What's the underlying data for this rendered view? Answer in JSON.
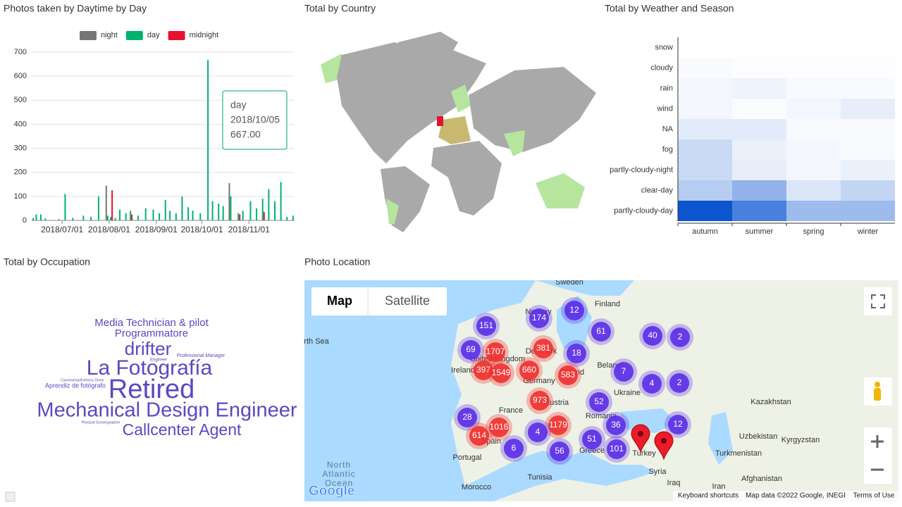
{
  "chart_data": [
    {
      "type": "bar",
      "title": "Photos taken by Daytime by Day",
      "x": [
        "2018/06/12",
        "2018/06/14",
        "2018/06/17",
        "2018/06/20",
        "2018/06/29",
        "2018/07/03",
        "2018/07/08",
        "2018/07/15",
        "2018/07/20",
        "2018/07/25",
        "2018/07/31",
        "2018/08/02",
        "2018/08/05",
        "2018/08/08",
        "2018/08/12",
        "2018/08/15",
        "2018/08/20",
        "2018/08/25",
        "2018/08/30",
        "2018/09/03",
        "2018/09/07",
        "2018/09/10",
        "2018/09/14",
        "2018/09/18",
        "2018/09/22",
        "2018/09/25",
        "2018/09/30",
        "2018/10/05",
        "2018/10/08",
        "2018/10/12",
        "2018/10/15",
        "2018/10/20",
        "2018/10/25",
        "2018/10/28",
        "2018/11/02",
        "2018/11/06",
        "2018/11/10",
        "2018/11/14",
        "2018/11/18",
        "2018/11/22",
        "2018/11/26",
        "2018/11/30"
      ],
      "series": [
        {
          "name": "night",
          "color": "#757575",
          "values": [
            null,
            null,
            null,
            null,
            null,
            null,
            null,
            null,
            null,
            null,
            145,
            null,
            null,
            null,
            null,
            null,
            null,
            null,
            null,
            null,
            null,
            null,
            null,
            null,
            null,
            null,
            null,
            null,
            null,
            null,
            null,
            155,
            null,
            null,
            null,
            null,
            null,
            null,
            null,
            null,
            null,
            null
          ]
        },
        {
          "name": "day",
          "color": "#00b26f",
          "values": [
            10,
            25,
            25,
            8,
            5,
            110,
            10,
            20,
            15,
            100,
            20,
            15,
            10,
            45,
            30,
            40,
            20,
            50,
            45,
            30,
            85,
            40,
            30,
            100,
            55,
            40,
            30,
            667,
            80,
            70,
            60,
            100,
            30,
            40,
            80,
            50,
            90,
            130,
            80,
            160,
            15,
            20
          ]
        },
        {
          "name": "midnight",
          "color": "#e8112d",
          "values": [
            null,
            null,
            null,
            null,
            null,
            null,
            null,
            null,
            null,
            null,
            null,
            125,
            null,
            null,
            null,
            25,
            null,
            null,
            null,
            null,
            null,
            null,
            null,
            null,
            null,
            null,
            null,
            null,
            null,
            null,
            null,
            null,
            25,
            null,
            null,
            null,
            35,
            null,
            null,
            null,
            null,
            null
          ]
        }
      ],
      "xlim": [
        "2018/06/11",
        "2018/12/01"
      ],
      "xticks": [
        "2018/07/01",
        "2018/08/01",
        "2018/09/01",
        "2018/10/01",
        "2018/11/01"
      ],
      "ylim": [
        0,
        700
      ],
      "yticks": [
        0,
        100,
        200,
        300,
        400,
        500,
        600,
        700
      ],
      "grid": true,
      "tooltip": {
        "name": "day",
        "x": "2018/10/05",
        "value": 667,
        "value_label": "667.00"
      }
    },
    {
      "type": "choropleth",
      "title": "Total by Country"
    },
    {
      "type": "heatmap",
      "title": "Total by Weather and Season",
      "x": [
        "autumn",
        "summer",
        "spring",
        "winter"
      ],
      "y": [
        "snow",
        "cloudy",
        "rain",
        "wind",
        "NA",
        "fog",
        "partly-cloudy-night",
        "clear-day",
        "partly-cloudy-day"
      ],
      "values": [
        [
          0,
          0,
          0,
          0
        ],
        [
          3,
          1,
          1,
          1
        ],
        [
          5,
          7,
          3,
          3
        ],
        [
          5,
          2,
          5,
          10
        ],
        [
          12,
          12,
          3,
          3
        ],
        [
          22,
          8,
          5,
          3
        ],
        [
          22,
          10,
          5,
          8
        ],
        [
          30,
          45,
          15,
          25
        ],
        [
          100,
          75,
          40,
          40
        ]
      ],
      "color": "#0b55cf"
    },
    {
      "type": "wordcloud",
      "title": "Total by Occupation",
      "color": "#5b48c2",
      "words": [
        {
          "text": "Media Technician & pilot",
          "weight": 15
        },
        {
          "text": "Programmatore",
          "weight": 15
        },
        {
          "text": "drifter",
          "weight": 26
        },
        {
          "text": "Professional Manager",
          "weight": 7
        },
        {
          "text": "Engineer",
          "weight": 6
        },
        {
          "text": "La Fotografía",
          "weight": 30
        },
        {
          "text": "Cameraman/Delivery Driver",
          "weight": 5
        },
        {
          "text": "Aprendiz de fotógrafo",
          "weight": 9
        },
        {
          "text": "Retired",
          "weight": 38
        },
        {
          "text": "Mechanical Design Engineer",
          "weight": 29
        },
        {
          "text": "Physical Oceanographer",
          "weight": 5
        },
        {
          "text": "Callcenter Agent",
          "weight": 23
        }
      ]
    },
    {
      "type": "map",
      "title": "Photo Location",
      "clusters": [
        {
          "value": 151,
          "color": "#5b2ee8"
        },
        {
          "value": 174,
          "color": "#5b2ee8"
        },
        {
          "value": 12,
          "color": "#5b2ee8"
        },
        {
          "value": 69,
          "color": "#5b2ee8"
        },
        {
          "value": 1707,
          "color": "#f0302f"
        },
        {
          "value": 381,
          "color": "#f0302f"
        },
        {
          "value": 18,
          "color": "#5b2ee8"
        },
        {
          "value": 61,
          "color": "#5b2ee8"
        },
        {
          "value": 40,
          "color": "#5b2ee8"
        },
        {
          "value": 2,
          "color": "#5b2ee8"
        },
        {
          "value": 397,
          "color": "#f0302f"
        },
        {
          "value": 1549,
          "color": "#f0302f"
        },
        {
          "value": 660,
          "color": "#f0302f"
        },
        {
          "value": 583,
          "color": "#f0302f"
        },
        {
          "value": 7,
          "color": "#5b2ee8"
        },
        {
          "value": 4,
          "color": "#5b2ee8"
        },
        {
          "value": 2,
          "color": "#5b2ee8"
        },
        {
          "value": 973,
          "color": "#f0302f"
        },
        {
          "value": 52,
          "color": "#5b2ee8"
        },
        {
          "value": 28,
          "color": "#5b2ee8"
        },
        {
          "value": 1016,
          "color": "#f0302f"
        },
        {
          "value": 1179,
          "color": "#f0302f"
        },
        {
          "value": 36,
          "color": "#5b2ee8"
        },
        {
          "value": 12,
          "color": "#5b2ee8"
        },
        {
          "value": 614,
          "color": "#f0302f"
        },
        {
          "value": 4,
          "color": "#5b2ee8"
        },
        {
          "value": 51,
          "color": "#5b2ee8"
        },
        {
          "value": 101,
          "color": "#5b2ee8"
        },
        {
          "value": 6,
          "color": "#5b2ee8"
        },
        {
          "value": 56,
          "color": "#5b2ee8"
        }
      ],
      "places": [
        "Sweden",
        "Finland",
        "Norway",
        "North Sea",
        "Ireland",
        "United Kingdom",
        "Denmark",
        "Poland",
        "Germany",
        "Belarus",
        "Ukraine",
        "Kazakhstan",
        "Austria",
        "France",
        "Romania",
        "Uzbekistan",
        "Kyrgyzstan",
        "Spain",
        "Portugal",
        "Greece",
        "Turkey",
        "Turkmenistan",
        "Syria",
        "Afghanistan",
        "Iraq",
        "Iran",
        "North",
        "Atlantic",
        "Ocean",
        "Morocco",
        "Tunisia"
      ],
      "controls": [
        "Map",
        "Satellite"
      ],
      "attribution": [
        "Keyboard shortcuts",
        "Map data ©2022 Google, INEGI",
        "Terms of Use"
      ],
      "logo": "Google"
    }
  ]
}
